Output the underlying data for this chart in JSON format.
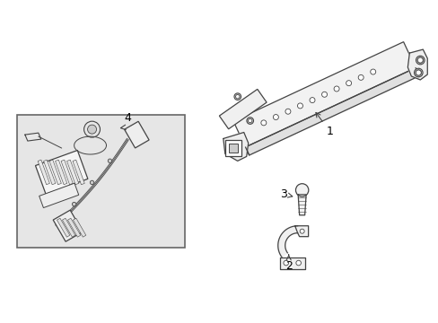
{
  "background_color": "#ffffff",
  "line_color": "#444444",
  "label_color": "#000000",
  "figsize": [
    4.89,
    3.6
  ],
  "dpi": 100
}
